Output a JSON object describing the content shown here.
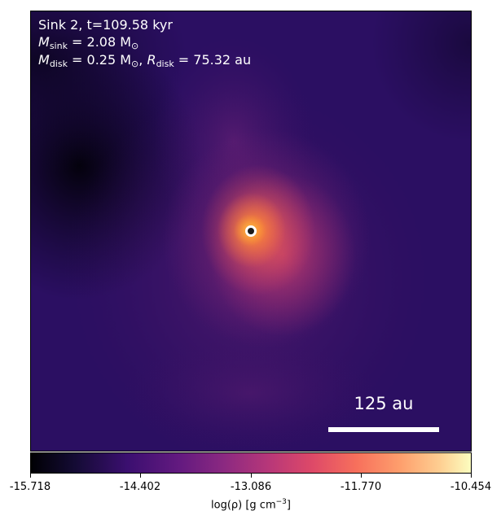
{
  "annotation": {
    "line1": "Sink 2, t=109.58 kyr",
    "msink_symbol": "M",
    "msink_sub": "sink",
    "msink_value": " = 2.08 M",
    "msink_unit_sub": "⊙",
    "mdisk_symbol": "M",
    "mdisk_sub": "disk",
    "mdisk_value": " = 0.25 M",
    "mdisk_unit_sub": "⊙",
    "rdisk_prefix": ", ",
    "rdisk_symbol": "R",
    "rdisk_sub": "disk",
    "rdisk_value": " = 75.32 au"
  },
  "scalebar": {
    "label": "125 au"
  },
  "colorbar": {
    "ticks": [
      "-15.718",
      "-14.402",
      "-13.086",
      "-11.770",
      "-10.454"
    ],
    "label_prefix": "log(ρ) [g cm",
    "label_exp": "−3",
    "label_suffix": "]",
    "colormap": "inferno"
  },
  "colors": {
    "text_on_image": "#ffffff",
    "sink_marker_fill": "#1a1a1a",
    "sink_marker_ring": "#ffffff"
  }
}
